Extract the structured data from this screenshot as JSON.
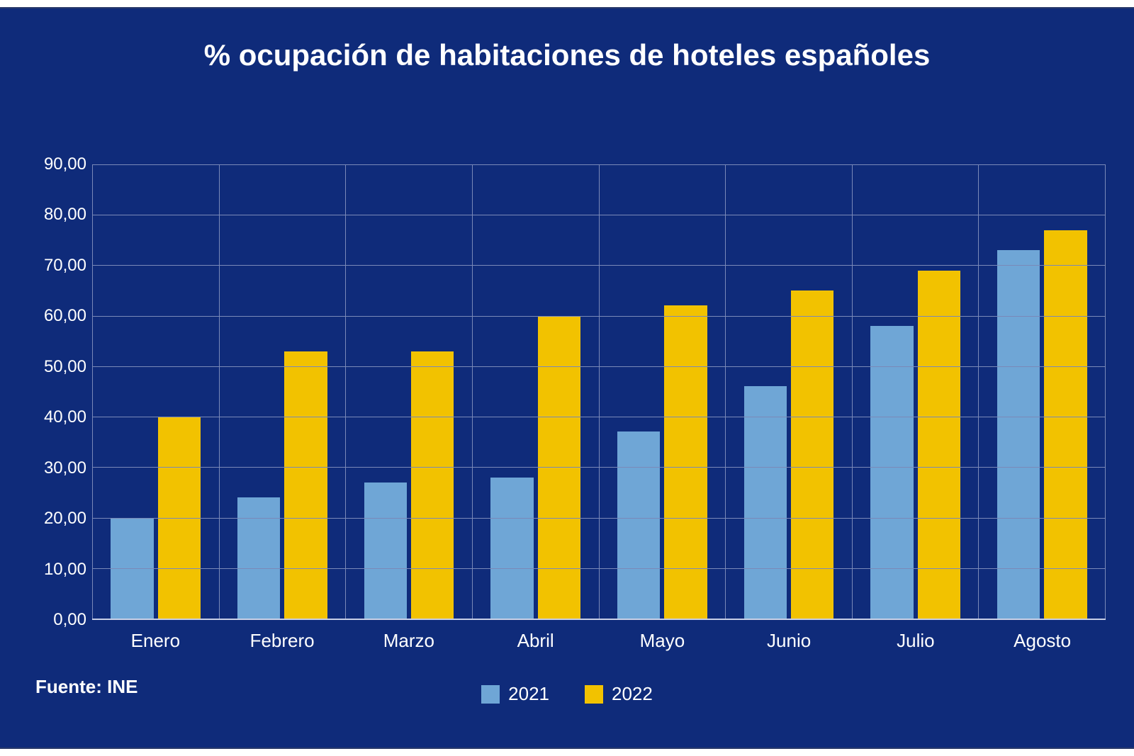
{
  "chart": {
    "type": "bar",
    "title": "% ocupación de habitaciones de hoteles españoles",
    "title_fontsize": 42,
    "title_color": "#ffffff",
    "background_color": "#0f2b7a",
    "axis_color": "#c9d0e6",
    "grid_color": "#7a89b8",
    "label_color": "#ffffff",
    "label_fontsize": 26,
    "tick_fontsize": 24,
    "ylim": [
      0,
      90
    ],
    "ytick_step": 10,
    "yticks": [
      "0,00",
      "10,00",
      "20,00",
      "30,00",
      "40,00",
      "50,00",
      "60,00",
      "70,00",
      "80,00",
      "90,00"
    ],
    "categories": [
      "Enero",
      "Febrero",
      "Marzo",
      "Abril",
      "Mayo",
      "Junio",
      "Julio",
      "Agosto"
    ],
    "series": [
      {
        "name": "2021",
        "color": "#6fa6d6",
        "values": [
          20,
          24,
          27,
          28,
          37,
          46,
          58,
          73
        ]
      },
      {
        "name": "2022",
        "color": "#f2c200",
        "values": [
          40,
          53,
          53,
          60,
          62,
          65,
          69,
          77
        ]
      }
    ],
    "bar_width_pct": 34,
    "source_label": "Fuente: INE"
  }
}
